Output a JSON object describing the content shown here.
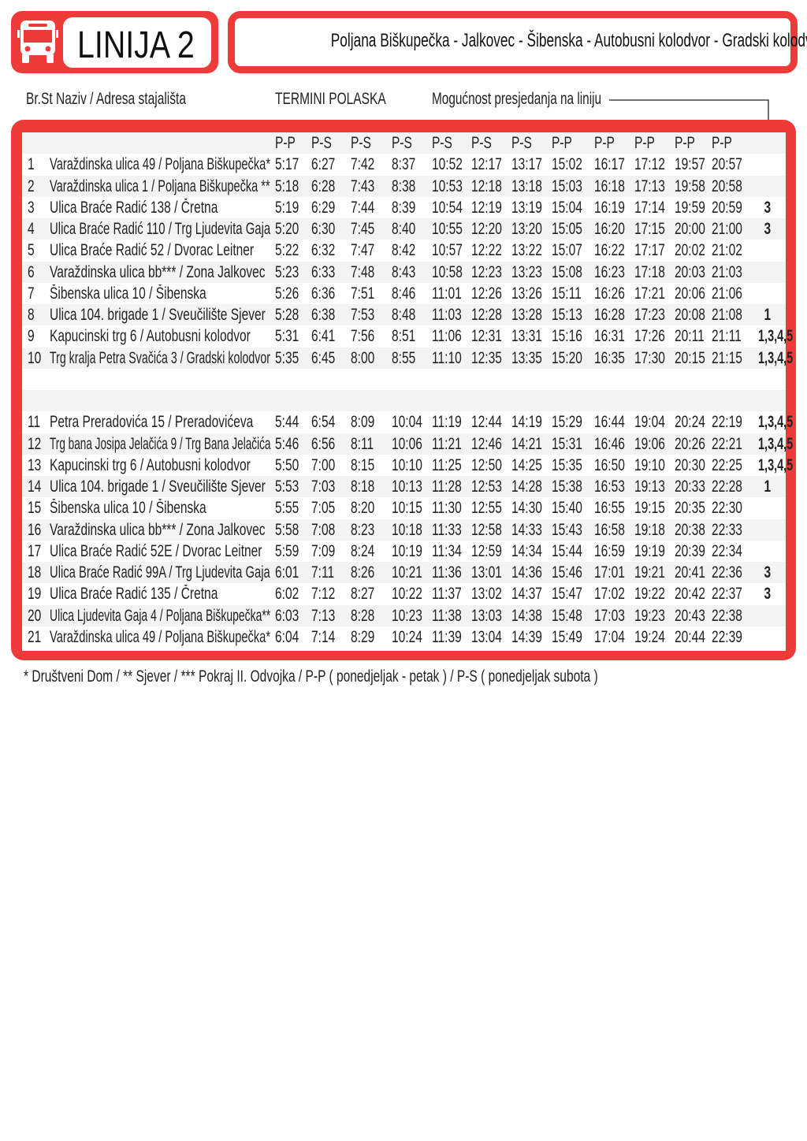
{
  "header": {
    "line_label": "LINIJA 2",
    "route": "Poljana Biškupečka - Jalkovec - Šibenska - Autobusni kolodvor - Gradski kolodvor",
    "icon": "bus-icon",
    "accent_color": "#ee3a39"
  },
  "labels": {
    "stop_col": "Br.St Naziv / Adresa stajališta",
    "departures": "TERMINI POLASKA",
    "transfer": "Mogućnost presjedanja na liniju"
  },
  "table": {
    "day_types": [
      "P-P",
      "P-S",
      "P-S",
      "P-S",
      "P-S",
      "P-S",
      "P-S",
      "P-P",
      "P-P",
      "P-P",
      "P-P",
      "P-P"
    ],
    "section1": [
      {
        "no": "1",
        "name": "Varaždinska ulica 49 / Poljana Biškupečka*",
        "times": [
          "5:17",
          "6:27",
          "7:42",
          "8:37",
          "10:52",
          "12:17",
          "13:17",
          "15:02",
          "16:17",
          "17:12",
          "19:57",
          "20:57"
        ],
        "transfer": ""
      },
      {
        "no": "2",
        "name": "Varaždinska ulica 1 / Poljana Biškupečka **",
        "times": [
          "5:18",
          "6:28",
          "7:43",
          "8:38",
          "10:53",
          "12:18",
          "13:18",
          "15:03",
          "16:18",
          "17:13",
          "19:58",
          "20:58"
        ],
        "transfer": ""
      },
      {
        "no": "3",
        "name": "Ulica Braće Radić 138 / Čretna",
        "times": [
          "5:19",
          "6:29",
          "7:44",
          "8:39",
          "10:54",
          "12:19",
          "13:19",
          "15:04",
          "16:19",
          "17:14",
          "19:59",
          "20:59"
        ],
        "transfer": "3"
      },
      {
        "no": "4",
        "name": "Ulica Braće Radić 110 / Trg Ljudevita Gaja",
        "times": [
          "5:20",
          "6:30",
          "7:45",
          "8:40",
          "10:55",
          "12:20",
          "13:20",
          "15:05",
          "16:20",
          "17:15",
          "20:00",
          "21:00"
        ],
        "transfer": "3"
      },
      {
        "no": "5",
        "name": "Ulica Braće Radić 52 / Dvorac Leitner",
        "times": [
          "5:22",
          "6:32",
          "7:47",
          "8:42",
          "10:57",
          "12:22",
          "13:22",
          "15:07",
          "16:22",
          "17:17",
          "20:02",
          "21:02"
        ],
        "transfer": ""
      },
      {
        "no": "6",
        "name": "Varaždinska ulica bb*** / Zona Jalkovec",
        "times": [
          "5:23",
          "6:33",
          "7:48",
          "8:43",
          "10:58",
          "12:23",
          "13:23",
          "15:08",
          "16:23",
          "17:18",
          "20:03",
          "21:03"
        ],
        "transfer": ""
      },
      {
        "no": "7",
        "name": "Šibenska ulica 10 / Šibenska",
        "times": [
          "5:26",
          "6:36",
          "7:51",
          "8:46",
          "11:01",
          "12:26",
          "13:26",
          "15:11",
          "16:26",
          "17:21",
          "20:06",
          "21:06"
        ],
        "transfer": ""
      },
      {
        "no": "8",
        "name": "Ulica 104. brigade 1 / Sveučilište Sjever",
        "times": [
          "5:28",
          "6:38",
          "7:53",
          "8:48",
          "11:03",
          "12:28",
          "13:28",
          "15:13",
          "16:28",
          "17:23",
          "20:08",
          "21:08"
        ],
        "transfer": "1"
      },
      {
        "no": "9",
        "name": "Kapucinski trg 6 / Autobusni kolodvor",
        "times": [
          "5:31",
          "6:41",
          "7:56",
          "8:51",
          "11:06",
          "12:31",
          "13:31",
          "15:16",
          "16:31",
          "17:26",
          "20:11",
          "21:11"
        ],
        "transfer": "1,3,4,5"
      },
      {
        "no": "10",
        "name": "Trg kralja Petra Svačića 3 / Gradski kolodvor",
        "times": [
          "5:35",
          "6:45",
          "8:00",
          "8:55",
          "11:10",
          "12:35",
          "13:35",
          "15:20",
          "16:35",
          "17:30",
          "20:15",
          "21:15"
        ],
        "transfer": "1,3,4,5"
      }
    ],
    "section2": [
      {
        "no": "11",
        "name": "Petra Preradovića 15 / Preradovićeva",
        "times": [
          "5:44",
          "6:54",
          "8:09",
          "10:04",
          "11:19",
          "12:44",
          "14:19",
          "15:29",
          "16:44",
          "19:04",
          "20:24",
          "22:19"
        ],
        "transfer": "1,3,4,5"
      },
      {
        "no": "12",
        "name": "Trg bana Josipa Jelačića 9 / Trg Bana Jelačića",
        "times": [
          "5:46",
          "6:56",
          "8:11",
          "10:06",
          "11:21",
          "12:46",
          "14:21",
          "15:31",
          "16:46",
          "19:06",
          "20:26",
          "22:21"
        ],
        "transfer": "1,3,4,5"
      },
      {
        "no": "13",
        "name": "Kapucinski trg 6 / Autobusni kolodvor",
        "times": [
          "5:50",
          "7:00",
          "8:15",
          "10:10",
          "11:25",
          "12:50",
          "14:25",
          "15:35",
          "16:50",
          "19:10",
          "20:30",
          "22:25"
        ],
        "transfer": "1,3,4,5"
      },
      {
        "no": "14",
        "name": "Ulica 104. brigade 1 / Sveučilište Sjever",
        "times": [
          "5:53",
          "7:03",
          "8:18",
          "10:13",
          "11:28",
          "12:53",
          "14:28",
          "15:38",
          "16:53",
          "19:13",
          "20:33",
          "22:28"
        ],
        "transfer": "1"
      },
      {
        "no": "15",
        "name": "Šibenska ulica 10 / Šibenska",
        "times": [
          "5:55",
          "7:05",
          "8:20",
          "10:15",
          "11:30",
          "12:55",
          "14:30",
          "15:40",
          "16:55",
          "19:15",
          "20:35",
          "22:30"
        ],
        "transfer": ""
      },
      {
        "no": "16",
        "name": "Varaždinska ulica bb*** / Zona Jalkovec",
        "times": [
          "5:58",
          "7:08",
          "8:23",
          "10:18",
          "11:33",
          "12:58",
          "14:33",
          "15:43",
          "16:58",
          "19:18",
          "20:38",
          "22:33"
        ],
        "transfer": ""
      },
      {
        "no": "17",
        "name": "Ulica Braće Radić 52E / Dvorac Leitner",
        "times": [
          "5:59",
          "7:09",
          "8:24",
          "10:19",
          "11:34",
          "12:59",
          "14:34",
          "15:44",
          "16:59",
          "19:19",
          "20:39",
          "22:34"
        ],
        "transfer": ""
      },
      {
        "no": "18",
        "name": "Ulica Braće Radić 99A / Trg Ljudevita Gaja",
        "times": [
          "6:01",
          "7:11",
          "8:26",
          "10:21",
          "11:36",
          "13:01",
          "14:36",
          "15:46",
          "17:01",
          "19:21",
          "20:41",
          "22:36"
        ],
        "transfer": "3"
      },
      {
        "no": "19",
        "name": "Ulica Braće Radić 135 / Čretna",
        "times": [
          "6:02",
          "7:12",
          "8:27",
          "10:22",
          "11:37",
          "13:02",
          "14:37",
          "15:47",
          "17:02",
          "19:22",
          "20:42",
          "22:37"
        ],
        "transfer": "3"
      },
      {
        "no": "20",
        "name": "Ulica Ljudevita Gaja 4 / Poljana Biškupečka**",
        "times": [
          "6:03",
          "7:13",
          "8:28",
          "10:23",
          "11:38",
          "13:03",
          "14:38",
          "15:48",
          "17:03",
          "19:23",
          "20:43",
          "22:38"
        ],
        "transfer": ""
      },
      {
        "no": "21",
        "name": "Varaždinska ulica 49 / Poljana Biškupečka*",
        "times": [
          "6:04",
          "7:14",
          "8:29",
          "10:24",
          "11:39",
          "13:04",
          "14:39",
          "15:49",
          "17:04",
          "19:24",
          "20:44",
          "22:39"
        ],
        "transfer": ""
      }
    ]
  },
  "footer": "*  Društveni Dom  /  **  Sjever   /  ***  Pokraj II. Odvojka   /  P-P ( ponedjeljak - petak )   /   P-S ( ponedjeljak subota )"
}
